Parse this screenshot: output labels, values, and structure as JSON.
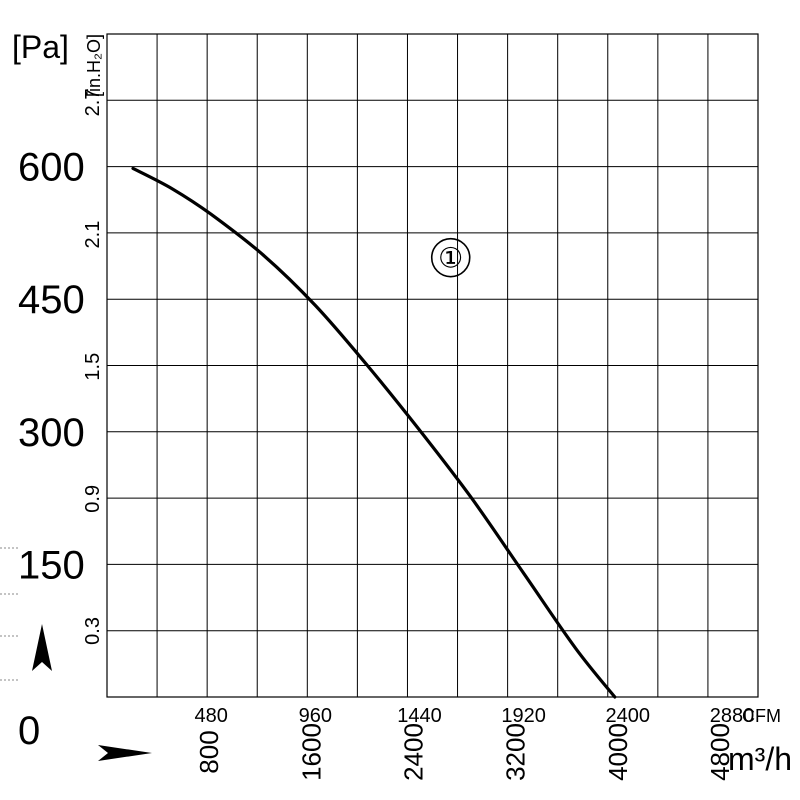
{
  "chart_data": {
    "type": "line",
    "title": "",
    "units": {
      "pressure_pa": "[Pa]",
      "pressure_inh2o": "[in.H₂O]",
      "flow_cfm": "CFM",
      "flow_m3h": "m³/h"
    },
    "zero_label": "0",
    "axes": {
      "x_cfm": {
        "range": [
          0,
          3000
        ],
        "ticks": [
          "480",
          "960",
          "1440",
          "1920",
          "2400",
          "2880"
        ]
      },
      "x_m3h": {
        "range": [
          0,
          5096.8
        ],
        "ticks": [
          "800",
          "1600",
          "2400",
          "3200",
          "4000",
          "4800"
        ]
      },
      "y_pa": {
        "range": [
          0,
          750
        ],
        "ticks": [
          "150",
          "300",
          "450",
          "600"
        ]
      },
      "y_inh2o": {
        "range": [
          0,
          3.0108
        ],
        "ticks": [
          "0.3",
          "0.9",
          "1.5",
          "2.1",
          "2.7"
        ]
      }
    },
    "grid": true,
    "series": [
      {
        "name": "①",
        "x_unit": "CFM",
        "y_unit": "Pa",
        "points": [
          [
            120,
            598
          ],
          [
            300,
            575
          ],
          [
            480,
            546
          ],
          [
            720,
            500
          ],
          [
            960,
            443
          ],
          [
            1200,
            375
          ],
          [
            1440,
            302
          ],
          [
            1680,
            225
          ],
          [
            1920,
            140
          ],
          [
            2160,
            55
          ],
          [
            2340,
            0
          ]
        ]
      }
    ],
    "series_labels": [
      {
        "text": "①",
        "x": 1584,
        "y": 497
      }
    ],
    "arrows": [
      "arrow-up",
      "arrow-right"
    ]
  }
}
